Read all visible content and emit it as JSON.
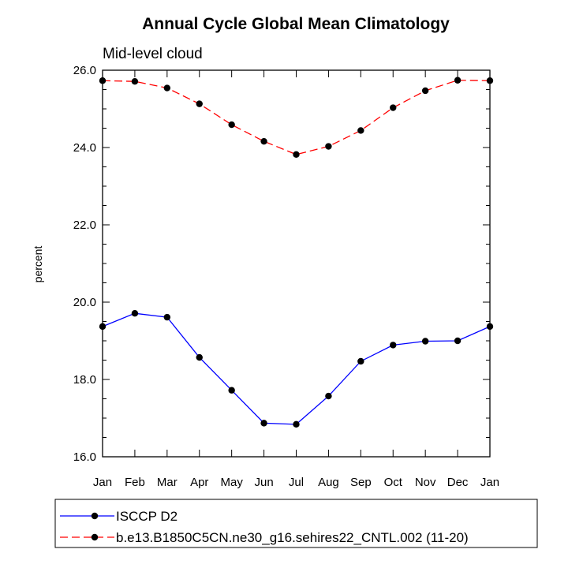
{
  "chart_data": {
    "type": "line",
    "title": "Annual Cycle Global Mean Climatology",
    "subtitle": "Mid-level cloud",
    "ylabel": "percent",
    "xlabel": "",
    "categories": [
      "Jan",
      "Feb",
      "Mar",
      "Apr",
      "May",
      "Jun",
      "Jul",
      "Aug",
      "Sep",
      "Oct",
      "Nov",
      "Dec",
      "Jan"
    ],
    "ylim": [
      16.0,
      26.0
    ],
    "yticks": [
      "16.0",
      "18.0",
      "20.0",
      "22.0",
      "24.0",
      "26.0"
    ],
    "grid": false,
    "legend_position": "bottom",
    "series": [
      {
        "name": "ISCCP D2",
        "color": "#0000ff",
        "dash": "solid",
        "values": [
          19.37,
          19.71,
          19.61,
          18.57,
          17.72,
          16.87,
          16.84,
          17.57,
          18.47,
          18.89,
          18.99,
          19.0,
          19.37
        ]
      },
      {
        "name": "b.e13.B1850C5CN.ne30_g16.sehires22_CNTL.002 (11-20)",
        "color": "#ff0000",
        "dash": "dashed",
        "values": [
          25.73,
          25.71,
          25.54,
          25.13,
          24.59,
          24.16,
          23.82,
          24.03,
          24.44,
          25.03,
          25.47,
          25.74,
          25.73
        ]
      }
    ]
  }
}
